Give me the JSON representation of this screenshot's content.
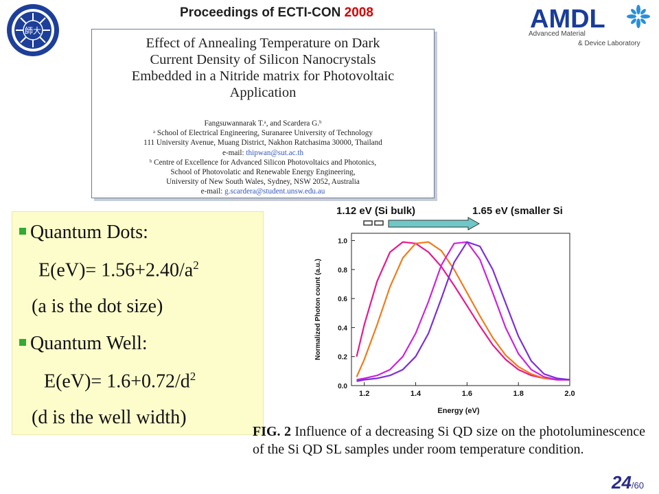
{
  "header": {
    "title_prefix": "Proceedings of ECTI-CON",
    "title_year": "2008"
  },
  "logos": {
    "university_seal_icon": "seal-icon",
    "university_seal_text": "師大",
    "amdl_primary": "AMDL",
    "amdl_line1": "Advanced Material",
    "amdl_line2": "& Device Laboratory",
    "amdl_brand_color": "#1a3d99",
    "amdl_accent_color": "#2e9b3a"
  },
  "paper": {
    "title_lines": [
      "Effect of Annealing Temperature on Dark",
      "Current Density of Silicon Nanocrystals",
      "Embedded in a Nitride matrix for Photovoltaic",
      "Application"
    ],
    "authors": "Fangsuwannarak T.ᵃ, and Scardera G.ᵇ",
    "affil_a_line1": "ᵃ School of Electrical Engineering, Suranaree University of Technology",
    "affil_a_line2": "111 University Avenue, Muang District, Nakhon Ratchasima 30000, Thailand",
    "email_a_label": "e-mail: ",
    "email_a": "thipwan@sut.ac.th",
    "affil_b_line1": "ᵇ Centre of Excellence for Advanced Silicon Photovoltaics and Photonics,",
    "affil_b_line2": "School of Photovolatic and Renewable Energy Engineering,",
    "affil_b_line3": "University of New South Wales, Sydney, NSW 2052, Australia",
    "email_b_label": "e-mail: ",
    "email_b": "g.scardera@student.unsw.edu.au"
  },
  "bullets": {
    "qd_label": "Quantum Dots:",
    "qd_formula_prefix": "E(eV)= 1.56+2.40/a",
    "qd_formula_exp": "2",
    "qd_note": "(a is the dot size)",
    "qw_label": "Quantum Well:",
    "qw_formula_prefix": "E(eV)= 1.6+0.72/d",
    "qw_formula_exp": "2",
    "qw_note": "(d is the well width)",
    "bullet_color": "#33aa33"
  },
  "chart_data": {
    "type": "line",
    "xlabel": "Energy (eV)",
    "ylabel": "Normalized Photon count (a.u.)",
    "xlim": [
      1.15,
      2.0
    ],
    "ylim": [
      0.0,
      1.05
    ],
    "x_ticks": [
      1.2,
      1.4,
      1.6,
      1.8,
      2.0
    ],
    "y_ticks": [
      0.0,
      0.2,
      0.4,
      0.6,
      0.8,
      1.0
    ],
    "annotation_left": "1.12 eV (Si bulk)",
    "annotation_right": "1.65 eV (smaller Si",
    "x": [
      1.17,
      1.2,
      1.25,
      1.3,
      1.35,
      1.4,
      1.45,
      1.5,
      1.55,
      1.6,
      1.65,
      1.7,
      1.75,
      1.8,
      1.85,
      1.9,
      1.95,
      2.0
    ],
    "series": [
      {
        "color": "#e8188a",
        "values": [
          0.2,
          0.42,
          0.72,
          0.92,
          0.99,
          0.98,
          0.92,
          0.82,
          0.69,
          0.55,
          0.41,
          0.28,
          0.18,
          0.11,
          0.07,
          0.05,
          0.04,
          0.04
        ]
      },
      {
        "color": "#f07a1a",
        "values": [
          0.06,
          0.18,
          0.42,
          0.68,
          0.88,
          0.98,
          0.99,
          0.93,
          0.8,
          0.64,
          0.48,
          0.33,
          0.21,
          0.13,
          0.08,
          0.05,
          0.04,
          0.04
        ]
      },
      {
        "color": "#cc22dd",
        "values": [
          0.04,
          0.05,
          0.07,
          0.11,
          0.2,
          0.36,
          0.58,
          0.83,
          0.98,
          0.99,
          0.87,
          0.64,
          0.4,
          0.22,
          0.11,
          0.06,
          0.04,
          0.04
        ]
      },
      {
        "color": "#7b2ed8",
        "values": [
          0.03,
          0.04,
          0.05,
          0.07,
          0.11,
          0.2,
          0.36,
          0.6,
          0.85,
          0.99,
          0.96,
          0.8,
          0.57,
          0.34,
          0.17,
          0.08,
          0.05,
          0.04
        ]
      }
    ]
  },
  "caption": {
    "fig_label": "FIG. 2",
    "text": " Influence of a decreasing Si QD size on the photoluminescence of the Si QD SL samples under room temperature condition."
  },
  "page": {
    "current": "24",
    "total": "/60"
  }
}
